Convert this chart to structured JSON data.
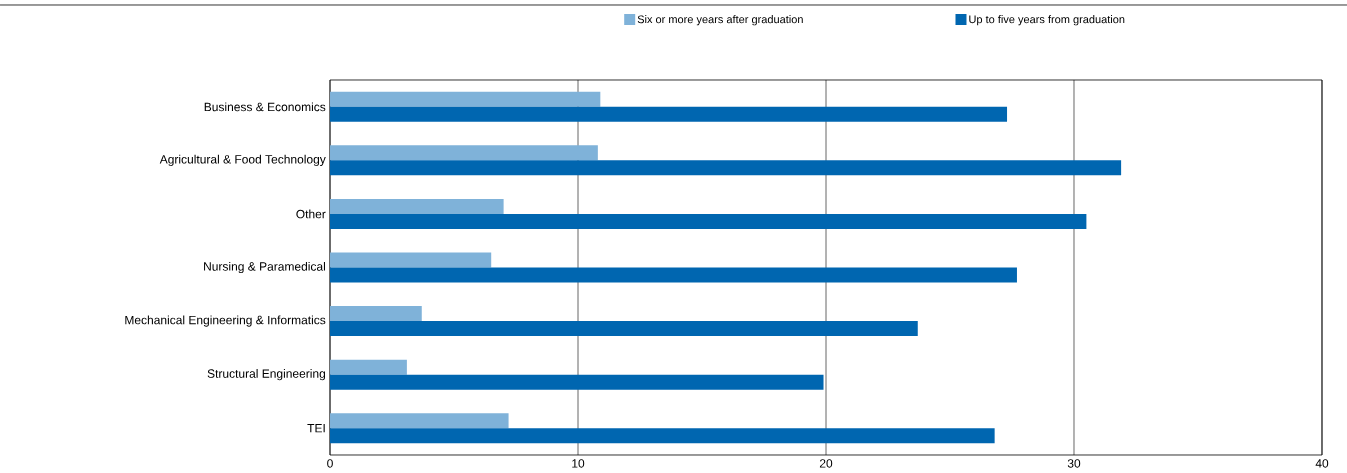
{
  "chart_data": {
    "type": "bar",
    "orientation": "horizontal",
    "categories": [
      "Business & Economics",
      "Agricultural & Food Technology",
      "Other",
      "Nursing & Paramedical",
      "Mechanical Engineering & Informatics",
      "Structural Engineering",
      "TEI"
    ],
    "series": [
      {
        "name": "Six or more years after graduation",
        "color": "#7fb2d9",
        "values": [
          10.9,
          10.8,
          7.0,
          6.5,
          3.7,
          3.1,
          7.2
        ]
      },
      {
        "name": "Up to five years from graduation",
        "color": "#0066b0",
        "values": [
          27.3,
          31.9,
          30.5,
          27.7,
          23.7,
          19.9,
          26.8
        ]
      }
    ],
    "xlim": [
      0,
      40
    ],
    "xticks": [
      0,
      10,
      20,
      30,
      40
    ],
    "grid": "x",
    "legend": "top"
  }
}
